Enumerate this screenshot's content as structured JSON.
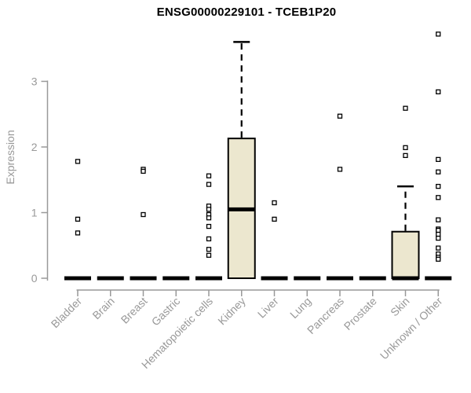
{
  "chart_data": {
    "type": "boxplot",
    "title": "ENSG00000229101 - TCEB1P20",
    "xlabel": "",
    "ylabel": "Expression",
    "ylim": [
      0,
      3.8
    ],
    "yticks": [
      0,
      1,
      2,
      3
    ],
    "grid": false,
    "legend": "none",
    "categories": [
      "Bladder",
      "Brain",
      "Breast",
      "Gastric",
      "Hematopoietic cells",
      "Kidney",
      "Liver",
      "Lung",
      "Pancreas",
      "Prostate",
      "Skin",
      "Unknown / Other"
    ],
    "boxes": [
      {
        "category": "Bladder",
        "q1": 0,
        "median": 0,
        "q3": 0,
        "whisker_low": 0,
        "whisker_high": 0,
        "outliers": [
          1.78,
          0.9,
          0.69
        ]
      },
      {
        "category": "Brain",
        "q1": 0,
        "median": 0,
        "q3": 0,
        "whisker_low": 0,
        "whisker_high": 0,
        "outliers": []
      },
      {
        "category": "Breast",
        "q1": 0,
        "median": 0,
        "q3": 0,
        "whisker_low": 0,
        "whisker_high": 0,
        "outliers": [
          1.66,
          1.63,
          0.97
        ]
      },
      {
        "category": "Gastric",
        "q1": 0,
        "median": 0,
        "q3": 0,
        "whisker_low": 0,
        "whisker_high": 0,
        "outliers": []
      },
      {
        "category": "Hematopoietic cells",
        "q1": 0,
        "median": 0,
        "q3": 0,
        "whisker_low": 0,
        "whisker_high": 0,
        "outliers": [
          1.56,
          1.43,
          1.1,
          1.05,
          0.97,
          0.92,
          0.79,
          0.6,
          0.44,
          0.35
        ]
      },
      {
        "category": "Kidney",
        "q1": 0,
        "median": 1.05,
        "q3": 2.13,
        "whisker_low": 0,
        "whisker_high": 3.6,
        "outliers": []
      },
      {
        "category": "Liver",
        "q1": 0,
        "median": 0,
        "q3": 0,
        "whisker_low": 0,
        "whisker_high": 0,
        "outliers": [
          1.15,
          0.9
        ]
      },
      {
        "category": "Lung",
        "q1": 0,
        "median": 0,
        "q3": 0,
        "whisker_low": 0,
        "whisker_high": 0,
        "outliers": []
      },
      {
        "category": "Pancreas",
        "q1": 0,
        "median": 0,
        "q3": 0,
        "whisker_low": 0,
        "whisker_high": 0,
        "outliers": [
          2.47,
          1.66
        ]
      },
      {
        "category": "Prostate",
        "q1": 0,
        "median": 0,
        "q3": 0,
        "whisker_low": 0,
        "whisker_high": 0,
        "outliers": []
      },
      {
        "category": "Skin",
        "q1": 0,
        "median": 0,
        "q3": 0.71,
        "whisker_low": 0,
        "whisker_high": 1.4,
        "outliers": [
          2.59,
          1.99,
          1.87
        ]
      },
      {
        "category": "Unknown / Other",
        "q1": 0,
        "median": 0,
        "q3": 0,
        "whisker_low": 0,
        "whisker_high": 0,
        "outliers": [
          3.72,
          2.84,
          1.81,
          1.62,
          1.4,
          1.23,
          0.89,
          0.75,
          0.73,
          0.67,
          0.61,
          0.46,
          0.37,
          0.32,
          0.29
        ]
      }
    ],
    "colors": {
      "background": "#FFFFFF",
      "box_fill": "#ECE7CF",
      "box_border": "#000000",
      "median": "#000000",
      "whisker": "#000000",
      "outlier_stroke": "#000000",
      "outlier_fill": "#FFFFFF",
      "axis": "#999999",
      "tick_label": "#999999",
      "title": "#000000",
      "axis_title": "#999999"
    }
  }
}
